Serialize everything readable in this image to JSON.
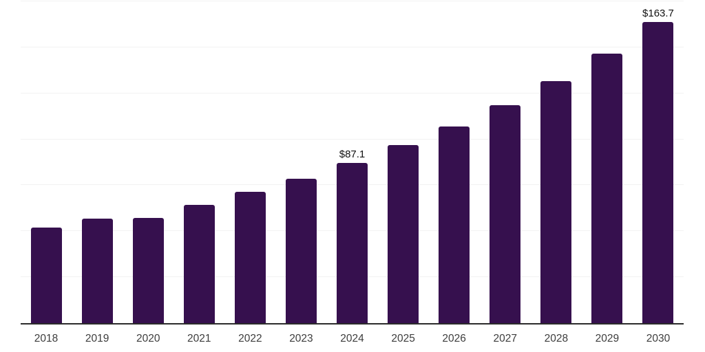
{
  "chart_data": {
    "type": "bar",
    "title": "",
    "xlabel": "",
    "ylabel": "",
    "categories": [
      "2018",
      "2019",
      "2020",
      "2021",
      "2022",
      "2023",
      "2024",
      "2025",
      "2026",
      "2027",
      "2028",
      "2029",
      "2030"
    ],
    "values": [
      51.8,
      57.0,
      57.4,
      64.3,
      71.4,
      78.6,
      87.1,
      96.7,
      107.1,
      118.6,
      131.7,
      146.5,
      163.7
    ],
    "data_labels": [
      null,
      null,
      null,
      null,
      null,
      null,
      "$87.1",
      null,
      null,
      null,
      null,
      null,
      "$163.7"
    ],
    "ylim": [
      0,
      175
    ],
    "grid_step": 25,
    "grid": true,
    "y_axis_labels_visible": false,
    "legend_position": null,
    "colors": {
      "bar": "#36104E",
      "gridline": "#f2f2f2",
      "axis_line": "#2b2b2b",
      "tick_label": "#3d3d3d",
      "data_label": "#111111",
      "background": "#ffffff"
    }
  }
}
